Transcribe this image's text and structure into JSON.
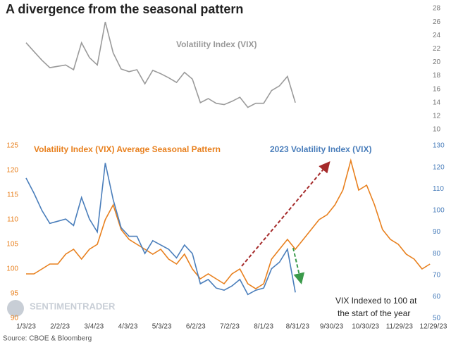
{
  "chart_data": [
    {
      "type": "line",
      "title": "A divergence from the seasonal pattern",
      "x": [
        "1/3/23",
        "1/10/23",
        "1/17/23",
        "1/24/23",
        "1/31/23",
        "2/7/23",
        "2/14/23",
        "2/21/23",
        "2/28/23",
        "3/7/23",
        "3/14/23",
        "3/21/23",
        "3/28/23",
        "4/4/23",
        "4/11/23",
        "4/18/23",
        "4/25/23",
        "5/2/23",
        "5/9/23",
        "5/16/23",
        "5/23/23",
        "5/30/23",
        "6/6/23",
        "6/13/23",
        "6/20/23",
        "6/27/23",
        "7/4/23",
        "7/11/23",
        "7/18/23",
        "7/25/23",
        "8/1/23",
        "8/8/23",
        "8/15/23",
        "8/22/23",
        "8/29/23"
      ],
      "series": [
        {
          "name": "Volatility Index (VIX)",
          "color": "#9a9a9a",
          "values": [
            22.9,
            21.6,
            20.3,
            19.2,
            19.4,
            19.6,
            18.9,
            22.9,
            20.7,
            19.6,
            26.0,
            21.4,
            19.0,
            18.6,
            18.9,
            16.8,
            18.8,
            18.3,
            17.7,
            17.0,
            18.5,
            17.5,
            14.0,
            14.6,
            13.9,
            13.7,
            14.2,
            14.8,
            13.3,
            13.9,
            13.9,
            15.8,
            16.5,
            17.9,
            14.0
          ]
        }
      ],
      "ylim": [
        10,
        28
      ],
      "yticks": [
        10,
        12,
        14,
        16,
        18,
        20,
        22,
        24,
        26,
        28
      ],
      "grid": false
    },
    {
      "type": "line",
      "x": [
        "1/3/23",
        "1/10/23",
        "1/17/23",
        "1/24/23",
        "1/31/23",
        "2/7/23",
        "2/14/23",
        "2/21/23",
        "2/28/23",
        "3/7/23",
        "3/14/23",
        "3/21/23",
        "3/28/23",
        "4/4/23",
        "4/11/23",
        "4/18/23",
        "4/25/23",
        "5/2/23",
        "5/9/23",
        "5/16/23",
        "5/23/23",
        "5/30/23",
        "6/6/23",
        "6/13/23",
        "6/20/23",
        "6/27/23",
        "7/4/23",
        "7/11/23",
        "7/18/23",
        "7/25/23",
        "8/1/23",
        "8/8/23",
        "8/15/23",
        "8/22/23",
        "8/29/23",
        "9/5/23",
        "9/12/23",
        "9/19/23",
        "9/26/23",
        "10/3/23",
        "10/10/23",
        "10/17/23",
        "10/24/23",
        "10/31/23",
        "11/7/23",
        "11/14/23",
        "11/21/23",
        "11/28/23",
        "12/5/23",
        "12/12/23",
        "12/19/23",
        "12/26/23"
      ],
      "series": [
        {
          "name": "Volatility Index (VIX) Average Seasonal Pattern",
          "color": "#e8801e",
          "axis": "y",
          "values": [
            99,
            99,
            100,
            101,
            101,
            103,
            104,
            102,
            104,
            105,
            110,
            113,
            108,
            106,
            105,
            104,
            103,
            104,
            102,
            101,
            103,
            100,
            98,
            99,
            98,
            97,
            99,
            100,
            97,
            96,
            97,
            102,
            104,
            106,
            104,
            106,
            108,
            110,
            111,
            113,
            116,
            122,
            116,
            117,
            113,
            108,
            106,
            105,
            103,
            102,
            100,
            101
          ]
        },
        {
          "name": "2023 Volatility Index (VIX)",
          "color": "#4a7ebb",
          "axis": "y2",
          "values": [
            115,
            108,
            100,
            94,
            95,
            96,
            93,
            106,
            96,
            90,
            122,
            105,
            92,
            88,
            88,
            80,
            86,
            84,
            82,
            78,
            84,
            80,
            66,
            68,
            64,
            63,
            65,
            68,
            61,
            63,
            64,
            73,
            76,
            82,
            62,
            null,
            null,
            null,
            null,
            null,
            null,
            null,
            null,
            null,
            null,
            null,
            null,
            null,
            null,
            null,
            null,
            null
          ]
        }
      ],
      "xlim": [
        "1/3/23",
        "12/29/23"
      ],
      "xticks": [
        "1/3/23",
        "2/2/23",
        "3/4/23",
        "4/3/23",
        "5/3/23",
        "6/2/23",
        "7/2/23",
        "8/1/23",
        "8/31/23",
        "9/30/23",
        "10/30/23",
        "11/29/23",
        "12/29/23"
      ],
      "ylim": [
        90,
        125
      ],
      "yticks": [
        90,
        95,
        100,
        105,
        110,
        115,
        120,
        125
      ],
      "y2lim": [
        50,
        130
      ],
      "y2ticks": [
        50,
        60,
        70,
        80,
        90,
        100,
        110,
        120,
        130
      ],
      "grid": false,
      "annotations": [
        "VIX Indexed to 100 at",
        "the start of the year"
      ],
      "source": "Source: CBOE & Bloomberg",
      "watermark": "SENTIMENTRADER"
    }
  ]
}
